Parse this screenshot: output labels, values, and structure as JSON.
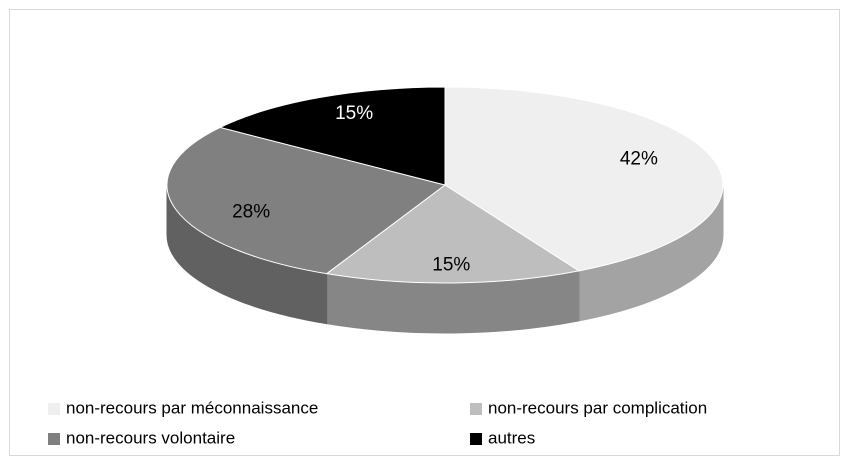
{
  "chart_data": {
    "type": "pie",
    "categories": [
      "non-recours par méconnaissance",
      "non-recours par complication",
      "non-recours volontaire",
      "autres"
    ],
    "values": [
      42,
      15,
      28,
      15
    ],
    "value_labels": [
      "42%",
      "15%",
      "28%",
      "15%"
    ],
    "colors": [
      "#efefef",
      "#bebebe",
      "#808080",
      "#000000"
    ],
    "legend": "bottom"
  }
}
